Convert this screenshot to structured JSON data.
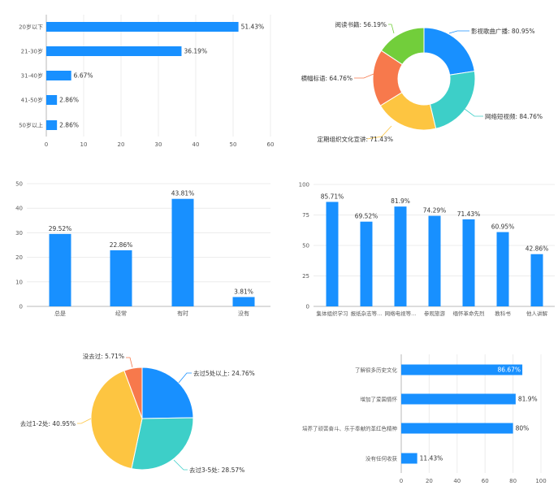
{
  "colors": {
    "blue": "#1890ff",
    "cyan": "#3dcfc8",
    "yellow": "#fdc541",
    "orange": "#f7794c",
    "green": "#72ce3b"
  },
  "chart_data": [
    {
      "type": "bar",
      "orientation": "horizontal",
      "categories": [
        "20岁以下",
        "21-30岁",
        "31-40岁",
        "41-50岁",
        "50岁以上"
      ],
      "values": [
        51.43,
        36.19,
        6.67,
        2.86,
        2.86
      ],
      "value_labels": [
        "51.43%",
        "36.19%",
        "6.67%",
        "2.86%",
        "2.86%"
      ],
      "xlim": [
        0,
        60
      ],
      "xticks": [
        "0",
        "10",
        "20",
        "30",
        "40",
        "50",
        "60"
      ],
      "grid": true,
      "color": "#1890ff"
    },
    {
      "type": "pie",
      "donut": true,
      "categories": [
        "影视歌曲广播",
        "网络短视频",
        "定期组织文化宣讲",
        "横幅标语",
        "阅读书籍"
      ],
      "values": [
        80.95,
        84.76,
        71.43,
        64.76,
        56.19
      ],
      "labels": [
        "影视歌曲广播: 80.95%",
        "网络短视频: 84.76%",
        "定期组织文化宣讲: 71.43%",
        "横幅标语: 64.76%",
        "阅读书籍: 56.19%"
      ],
      "colors": [
        "#1890ff",
        "#3dcfc8",
        "#fdc541",
        "#f7794c",
        "#72ce3b"
      ]
    },
    {
      "type": "bar",
      "categories": [
        "总是",
        "经常",
        "有时",
        "没有"
      ],
      "values": [
        29.52,
        22.86,
        43.81,
        3.81
      ],
      "value_labels": [
        "29.52%",
        "22.86%",
        "43.81%",
        "3.81%"
      ],
      "ylim": [
        0,
        50
      ],
      "yticks": [
        "0",
        "10",
        "20",
        "30",
        "40",
        "50"
      ],
      "grid": true,
      "color": "#1890ff"
    },
    {
      "type": "bar",
      "categories": [
        "集体组织学习",
        "报纸杂志等...",
        "网络电视等...",
        "参观旅游",
        "缅怀革命先烈",
        "教科书",
        "他人讲解"
      ],
      "values": [
        85.71,
        69.52,
        81.9,
        74.29,
        71.43,
        60.95,
        42.86
      ],
      "value_labels": [
        "85.71%",
        "69.52%",
        "81.9%",
        "74.29%",
        "71.43%",
        "60.95%",
        "42.86%"
      ],
      "ylim": [
        0,
        100
      ],
      "yticks": [
        "0",
        "25",
        "50",
        "75",
        "100"
      ],
      "grid": true,
      "color": "#1890ff"
    },
    {
      "type": "pie",
      "categories": [
        "去过5处以上",
        "去过3-5处",
        "去过1-2处",
        "没去过"
      ],
      "values": [
        24.76,
        28.57,
        40.95,
        5.71
      ],
      "labels": [
        "去过5处以上: 24.76%",
        "去过3-5处: 28.57%",
        "去过1-2处: 40.95%",
        "没去过: 5.71%"
      ],
      "colors": [
        "#1890ff",
        "#3dcfc8",
        "#fdc541",
        "#f7794c"
      ]
    },
    {
      "type": "bar",
      "orientation": "horizontal",
      "categories": [
        "了解很多历史文化",
        "增加了爱国情怀",
        "培养了顽苦奋斗、乐于奉献的革红色精神",
        "没有任何收获"
      ],
      "values": [
        86.67,
        81.9,
        80,
        11.43
      ],
      "value_labels": [
        "86.67%",
        "81.9%",
        "80%",
        "11.43%"
      ],
      "xlim": [
        0,
        100
      ],
      "xticks": [
        "0",
        "20",
        "40",
        "60",
        "80",
        "100"
      ],
      "grid": true,
      "color": "#1890ff"
    }
  ]
}
